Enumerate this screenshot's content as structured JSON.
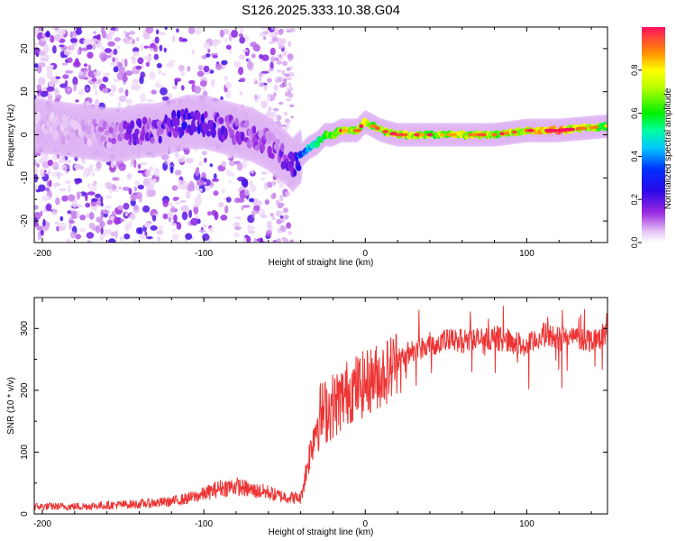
{
  "title": "S126.2025.333.10.38.G04",
  "chart_data": [
    {
      "type": "heatmap",
      "name": "spectrogram",
      "xlabel": "Height of straight line (km)",
      "ylabel": "Frequency (Hz)",
      "xlim": [
        -205,
        150
      ],
      "ylim": [
        -25,
        25
      ],
      "xticks": [
        -200,
        -100,
        0,
        100
      ],
      "yticks": [
        -20,
        -10,
        0,
        10,
        20
      ],
      "colorbar": {
        "label": "Normalized spectral amplitude",
        "range": [
          0,
          1
        ],
        "ticks": [
          0.0,
          0.2,
          0.4,
          0.6,
          0.8
        ],
        "tick_labels": [
          "0.0",
          "0.2",
          "0.4",
          "0.6",
          "0.8"
        ]
      },
      "ridge": {
        "description": "dominant frequency track vs height",
        "x": [
          -200,
          -180,
          -160,
          -150,
          -140,
          -130,
          -120,
          -110,
          -100,
          -90,
          -80,
          -70,
          -60,
          -50,
          -45,
          -40,
          -35,
          -30,
          -25,
          -20,
          -15,
          -10,
          -5,
          0,
          5,
          10,
          20,
          40,
          60,
          80,
          100,
          120,
          150
        ],
        "y": [
          2,
          1,
          0,
          0,
          1,
          1,
          2,
          3,
          3,
          2,
          1,
          0,
          -2,
          -5,
          -7,
          -5,
          -3,
          -2,
          0,
          0,
          1,
          1,
          1,
          3,
          2,
          1,
          0,
          0,
          0,
          0,
          1,
          1,
          2
        ],
        "amplitude": [
          0.05,
          0.06,
          0.08,
          0.12,
          0.15,
          0.16,
          0.18,
          0.2,
          0.18,
          0.16,
          0.14,
          0.12,
          0.12,
          0.14,
          0.15,
          0.3,
          0.45,
          0.55,
          0.6,
          0.7,
          0.75,
          0.65,
          0.7,
          0.75,
          0.6,
          0.7,
          0.7,
          0.68,
          0.72,
          0.7,
          0.75,
          0.85,
          0.6
        ]
      }
    },
    {
      "type": "line",
      "name": "snr",
      "xlabel": "Height of straight line (km)",
      "ylabel": "SNR (10 * v/v)",
      "xlim": [
        -205,
        150
      ],
      "ylim": [
        0,
        350
      ],
      "xticks": [
        -200,
        -100,
        0,
        100
      ],
      "yticks": [
        0,
        100,
        200,
        300
      ],
      "color": "#ee3333",
      "series": [
        {
          "name": "SNR",
          "x": [
            -205,
            -180,
            -160,
            -140,
            -120,
            -110,
            -100,
            -90,
            -80,
            -70,
            -60,
            -55,
            -50,
            -40,
            -35,
            -30,
            -28,
            -25,
            -20,
            -15,
            -10,
            -5,
            0,
            5,
            10,
            15,
            20,
            30,
            40,
            50,
            60,
            70,
            80,
            90,
            100,
            110,
            120,
            130,
            140,
            150
          ],
          "y": [
            12,
            12,
            14,
            16,
            20,
            25,
            32,
            42,
            45,
            38,
            35,
            30,
            28,
            25,
            90,
            150,
            160,
            165,
            175,
            185,
            200,
            205,
            210,
            220,
            225,
            235,
            250,
            265,
            275,
            280,
            280,
            282,
            285,
            280,
            270,
            290,
            285,
            285,
            282,
            290
          ]
        }
      ]
    }
  ]
}
